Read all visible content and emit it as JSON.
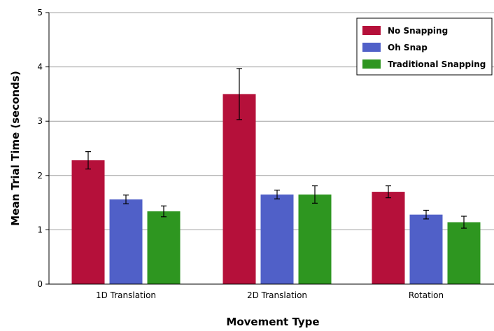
{
  "chart_data": {
    "type": "bar",
    "xlabel": "Movement Type",
    "ylabel": "Mean Trial Time (seconds)",
    "categories": [
      "1D Translation",
      "2D Translation",
      "Rotation"
    ],
    "ylim": [
      0,
      5
    ],
    "yticks": [
      "0",
      "1",
      "2",
      "3",
      "4",
      "5"
    ],
    "grid": true,
    "legend_position": "top-right",
    "series": [
      {
        "name": "No Snapping",
        "color": "#b5103a",
        "values": [
          2.28,
          3.5,
          1.7
        ],
        "error": [
          0.16,
          0.47,
          0.11
        ]
      },
      {
        "name": "Oh Snap",
        "color": "#5060c8",
        "values": [
          1.56,
          1.65,
          1.28
        ],
        "error": [
          0.08,
          0.08,
          0.08
        ]
      },
      {
        "name": "Traditional Snapping",
        "color": "#2e9620",
        "values": [
          1.34,
          1.65,
          1.14
        ],
        "error": [
          0.1,
          0.16,
          0.11
        ]
      }
    ]
  }
}
